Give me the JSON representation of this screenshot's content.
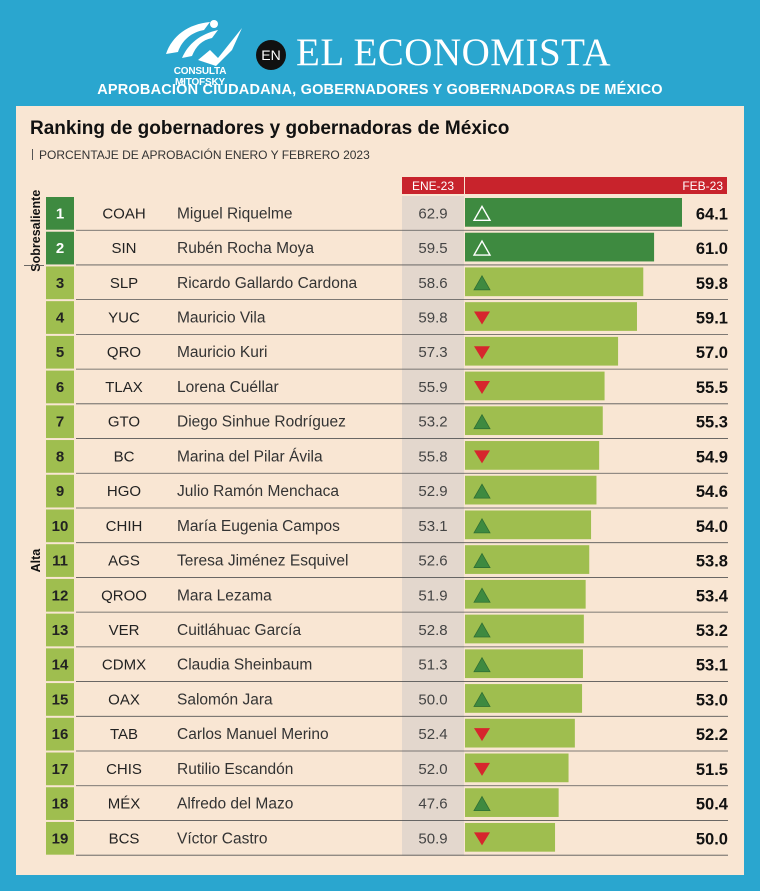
{
  "header": {
    "logo_text": "CONSULTA MITOFSKY",
    "en_badge": "EN",
    "brand": "EL ECONOMISTA",
    "subtitle": "APROBACIÓN CIUDADANA, GOBERNADORES Y GOBERNADORAS DE MÉXICO"
  },
  "colors": {
    "frame": "#2aa6cf",
    "panel": "#f9e6d3",
    "header_red": "#c8232c",
    "bar_dark": "#3e8a40",
    "bar_light": "#9fbe4f",
    "rank_dark": "#3e8a40",
    "rank_light": "#9fbe4f",
    "jan_column": "#e3d7cd",
    "arrow_up": "#3e8a40",
    "arrow_down": "#d6262d"
  },
  "chart_data": {
    "type": "bar",
    "title": "Ranking de gobernadores y gobernadoras de México",
    "subtitle": "PORCENTAJE DE APROBACIÓN ENERO Y FEBRERO 2023",
    "col_jan": "ENE-23",
    "col_feb": "FEB-23",
    "groups": [
      {
        "label": "Sobresaliente",
        "from": 1,
        "to": 2
      },
      {
        "label": "Alta",
        "from": 3,
        "to": 19
      }
    ],
    "rows": [
      {
        "rank": "1",
        "state": "COAH",
        "name": "Miguel Riquelme",
        "jan": 62.9,
        "feb": 64.1,
        "trend": "up",
        "jan_label": "62.9",
        "feb_label": "64.1"
      },
      {
        "rank": "2",
        "state": "SIN",
        "name": "Rubén Rocha Moya",
        "jan": 59.5,
        "feb": 61.0,
        "trend": "up",
        "jan_label": "59.5",
        "feb_label": "61.0"
      },
      {
        "rank": "3",
        "state": "SLP",
        "name": "Ricardo Gallardo Cardona",
        "jan": 58.6,
        "feb": 59.8,
        "trend": "up",
        "jan_label": "58.6",
        "feb_label": "59.8"
      },
      {
        "rank": "4",
        "state": "YUC",
        "name": "Mauricio Vila",
        "jan": 59.8,
        "feb": 59.1,
        "trend": "down",
        "jan_label": "59.8",
        "feb_label": "59.1"
      },
      {
        "rank": "5",
        "state": "QRO",
        "name": "Mauricio Kuri",
        "jan": 57.3,
        "feb": 57.0,
        "trend": "down",
        "jan_label": "57.3",
        "feb_label": "57.0"
      },
      {
        "rank": "6",
        "state": "TLAX",
        "name": "Lorena Cuéllar",
        "jan": 55.9,
        "feb": 55.5,
        "trend": "down",
        "jan_label": "55.9",
        "feb_label": "55.5"
      },
      {
        "rank": "7",
        "state": "GTO",
        "name": "Diego Sinhue Rodríguez",
        "jan": 53.2,
        "feb": 55.3,
        "trend": "up",
        "jan_label": "53.2",
        "feb_label": "55.3"
      },
      {
        "rank": "8",
        "state": "BC",
        "name": "Marina del Pilar Ávila",
        "jan": 55.8,
        "feb": 54.9,
        "trend": "down",
        "jan_label": "55.8",
        "feb_label": "54.9"
      },
      {
        "rank": "9",
        "state": "HGO",
        "name": "Julio Ramón Menchaca",
        "jan": 52.9,
        "feb": 54.6,
        "trend": "up",
        "jan_label": "52.9",
        "feb_label": "54.6"
      },
      {
        "rank": "10",
        "state": "CHIH",
        "name": "María Eugenia Campos",
        "jan": 53.1,
        "feb": 54.0,
        "trend": "up",
        "jan_label": "53.1",
        "feb_label": "54.0"
      },
      {
        "rank": "11",
        "state": "AGS",
        "name": "Teresa Jiménez Esquivel",
        "jan": 52.6,
        "feb": 53.8,
        "trend": "up",
        "jan_label": "52.6",
        "feb_label": "53.8"
      },
      {
        "rank": "12",
        "state": "QROO",
        "name": "Mara Lezama",
        "jan": 51.9,
        "feb": 53.4,
        "trend": "up",
        "jan_label": "51.9",
        "feb_label": "53.4"
      },
      {
        "rank": "13",
        "state": "VER",
        "name": "Cuitláhuac García",
        "jan": 52.8,
        "feb": 53.2,
        "trend": "up",
        "jan_label": "52.8",
        "feb_label": "53.2"
      },
      {
        "rank": "14",
        "state": "CDMX",
        "name": "Claudia Sheinbaum",
        "jan": 51.3,
        "feb": 53.1,
        "trend": "up",
        "jan_label": "51.3",
        "feb_label": "53.1"
      },
      {
        "rank": "15",
        "state": "OAX",
        "name": "Salomón Jara",
        "jan": 50.0,
        "feb": 53.0,
        "trend": "up",
        "jan_label": "50.0",
        "feb_label": "53.0"
      },
      {
        "rank": "16",
        "state": "TAB",
        "name": "Carlos Manuel Merino",
        "jan": 52.4,
        "feb": 52.2,
        "trend": "down",
        "jan_label": "52.4",
        "feb_label": "52.2"
      },
      {
        "rank": "17",
        "state": "CHIS",
        "name": "Rutilio Escandón",
        "jan": 52.0,
        "feb": 51.5,
        "trend": "down",
        "jan_label": "52.0",
        "feb_label": "51.5"
      },
      {
        "rank": "18",
        "state": "MÉX",
        "name": "Alfredo del Mazo",
        "jan": 47.6,
        "feb": 50.4,
        "trend": "up",
        "jan_label": "47.6",
        "feb_label": "50.4"
      },
      {
        "rank": "19",
        "state": "BCS",
        "name": "Víctor Castro",
        "jan": 50.9,
        "feb": 50.0,
        "trend": "down",
        "jan_label": "50.9",
        "feb_label": "50.0"
      }
    ]
  }
}
